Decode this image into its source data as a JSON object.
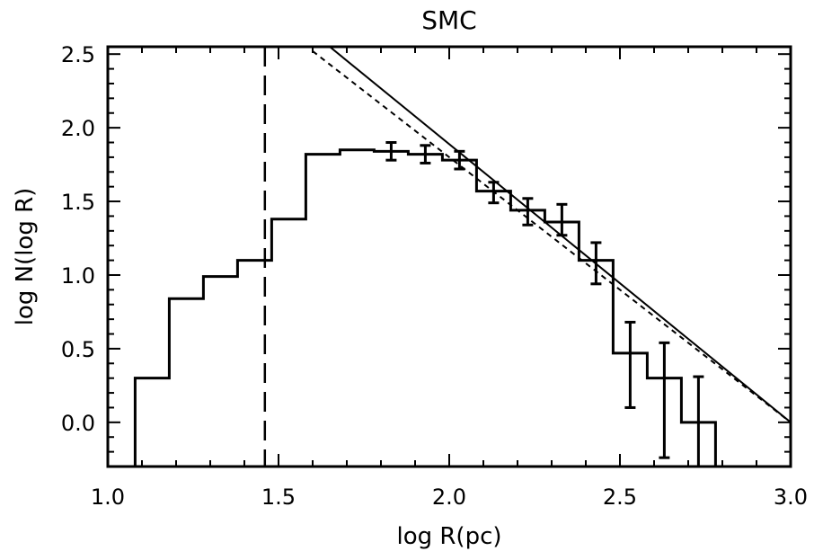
{
  "chart_data": {
    "type": "line",
    "title": "SMC",
    "xlabel": "log R(pc)",
    "ylabel": "log N(log R)",
    "xlim": [
      1.0,
      3.0
    ],
    "ylim": [
      -0.3,
      2.55
    ],
    "x_ticks": [
      {
        "value": 1.0,
        "label": "1.0"
      },
      {
        "value": 1.5,
        "label": "1.5"
      },
      {
        "value": 2.0,
        "label": "2.0"
      },
      {
        "value": 2.5,
        "label": "2.5"
      },
      {
        "value": 3.0,
        "label": "3.0"
      }
    ],
    "y_ticks": [
      {
        "value": 0.0,
        "label": "0.0"
      },
      {
        "value": 0.5,
        "label": "0.5"
      },
      {
        "value": 1.0,
        "label": "1.0"
      },
      {
        "value": 1.5,
        "label": "1.5"
      },
      {
        "value": 2.0,
        "label": "2.0"
      },
      {
        "value": 2.5,
        "label": "2.5"
      }
    ],
    "histogram": {
      "edges": [
        1.08,
        1.18,
        1.28,
        1.38,
        1.48,
        1.58,
        1.68,
        1.78,
        1.88,
        1.98,
        2.08,
        2.18,
        2.28,
        2.38,
        2.48,
        2.58,
        2.68,
        2.78
      ],
      "values": [
        0.3,
        0.84,
        0.99,
        1.1,
        1.38,
        1.82,
        1.85,
        1.84,
        1.82,
        1.78,
        1.57,
        1.44,
        1.36,
        1.1,
        0.47,
        0.3,
        0.0
      ]
    },
    "error_bars": [
      {
        "x": 1.83,
        "y": 1.84,
        "low": 1.78,
        "high": 1.9
      },
      {
        "x": 1.93,
        "y": 1.82,
        "low": 1.76,
        "high": 1.88
      },
      {
        "x": 2.03,
        "y": 1.78,
        "low": 1.72,
        "high": 1.84
      },
      {
        "x": 2.13,
        "y": 1.56,
        "low": 1.49,
        "high": 1.63
      },
      {
        "x": 2.23,
        "y": 1.43,
        "low": 1.34,
        "high": 1.52
      },
      {
        "x": 2.33,
        "y": 1.38,
        "low": 1.27,
        "high": 1.48
      },
      {
        "x": 2.43,
        "y": 1.08,
        "low": 0.94,
        "high": 1.22
      },
      {
        "x": 2.53,
        "y": 0.47,
        "low": 0.1,
        "high": 0.68
      },
      {
        "x": 2.63,
        "y": 0.3,
        "low": -0.24,
        "high": 0.54
      },
      {
        "x": 2.73,
        "y": 0.0,
        "low": -0.3,
        "high": 0.31
      }
    ],
    "threshold_x": 1.46,
    "fit_lines": [
      {
        "style": "solid",
        "x": [
          1.65,
          3.0
        ],
        "y": [
          2.55,
          0.0
        ]
      },
      {
        "style": "dashed",
        "x": [
          1.6,
          3.0
        ],
        "y": [
          2.52,
          0.0
        ]
      }
    ]
  }
}
